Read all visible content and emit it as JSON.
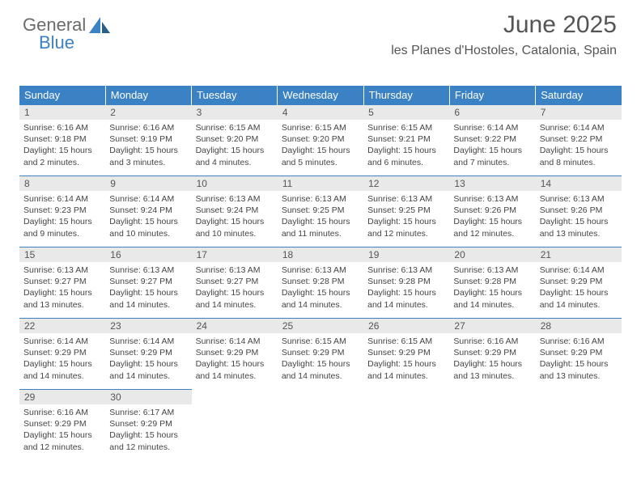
{
  "logo": {
    "word1": "General",
    "word2": "Blue"
  },
  "title": "June 2025",
  "location": "les Planes d'Hostoles, Catalonia, Spain",
  "colors": {
    "header_bg": "#3b82c4",
    "header_text": "#ffffff",
    "daynum_bg": "#e9e9e9",
    "border": "#3b82c4",
    "body_text": "#444444",
    "page_bg": "#ffffff"
  },
  "weekdays": [
    "Sunday",
    "Monday",
    "Tuesday",
    "Wednesday",
    "Thursday",
    "Friday",
    "Saturday"
  ],
  "days": [
    {
      "n": "1",
      "sr": "6:16 AM",
      "ss": "9:18 PM",
      "dl": "15 hours and 2 minutes."
    },
    {
      "n": "2",
      "sr": "6:16 AM",
      "ss": "9:19 PM",
      "dl": "15 hours and 3 minutes."
    },
    {
      "n": "3",
      "sr": "6:15 AM",
      "ss": "9:20 PM",
      "dl": "15 hours and 4 minutes."
    },
    {
      "n": "4",
      "sr": "6:15 AM",
      "ss": "9:20 PM",
      "dl": "15 hours and 5 minutes."
    },
    {
      "n": "5",
      "sr": "6:15 AM",
      "ss": "9:21 PM",
      "dl": "15 hours and 6 minutes."
    },
    {
      "n": "6",
      "sr": "6:14 AM",
      "ss": "9:22 PM",
      "dl": "15 hours and 7 minutes."
    },
    {
      "n": "7",
      "sr": "6:14 AM",
      "ss": "9:22 PM",
      "dl": "15 hours and 8 minutes."
    },
    {
      "n": "8",
      "sr": "6:14 AM",
      "ss": "9:23 PM",
      "dl": "15 hours and 9 minutes."
    },
    {
      "n": "9",
      "sr": "6:14 AM",
      "ss": "9:24 PM",
      "dl": "15 hours and 10 minutes."
    },
    {
      "n": "10",
      "sr": "6:13 AM",
      "ss": "9:24 PM",
      "dl": "15 hours and 10 minutes."
    },
    {
      "n": "11",
      "sr": "6:13 AM",
      "ss": "9:25 PM",
      "dl": "15 hours and 11 minutes."
    },
    {
      "n": "12",
      "sr": "6:13 AM",
      "ss": "9:25 PM",
      "dl": "15 hours and 12 minutes."
    },
    {
      "n": "13",
      "sr": "6:13 AM",
      "ss": "9:26 PM",
      "dl": "15 hours and 12 minutes."
    },
    {
      "n": "14",
      "sr": "6:13 AM",
      "ss": "9:26 PM",
      "dl": "15 hours and 13 minutes."
    },
    {
      "n": "15",
      "sr": "6:13 AM",
      "ss": "9:27 PM",
      "dl": "15 hours and 13 minutes."
    },
    {
      "n": "16",
      "sr": "6:13 AM",
      "ss": "9:27 PM",
      "dl": "15 hours and 14 minutes."
    },
    {
      "n": "17",
      "sr": "6:13 AM",
      "ss": "9:27 PM",
      "dl": "15 hours and 14 minutes."
    },
    {
      "n": "18",
      "sr": "6:13 AM",
      "ss": "9:28 PM",
      "dl": "15 hours and 14 minutes."
    },
    {
      "n": "19",
      "sr": "6:13 AM",
      "ss": "9:28 PM",
      "dl": "15 hours and 14 minutes."
    },
    {
      "n": "20",
      "sr": "6:13 AM",
      "ss": "9:28 PM",
      "dl": "15 hours and 14 minutes."
    },
    {
      "n": "21",
      "sr": "6:14 AM",
      "ss": "9:29 PM",
      "dl": "15 hours and 14 minutes."
    },
    {
      "n": "22",
      "sr": "6:14 AM",
      "ss": "9:29 PM",
      "dl": "15 hours and 14 minutes."
    },
    {
      "n": "23",
      "sr": "6:14 AM",
      "ss": "9:29 PM",
      "dl": "15 hours and 14 minutes."
    },
    {
      "n": "24",
      "sr": "6:14 AM",
      "ss": "9:29 PM",
      "dl": "15 hours and 14 minutes."
    },
    {
      "n": "25",
      "sr": "6:15 AM",
      "ss": "9:29 PM",
      "dl": "15 hours and 14 minutes."
    },
    {
      "n": "26",
      "sr": "6:15 AM",
      "ss": "9:29 PM",
      "dl": "15 hours and 14 minutes."
    },
    {
      "n": "27",
      "sr": "6:16 AM",
      "ss": "9:29 PM",
      "dl": "15 hours and 13 minutes."
    },
    {
      "n": "28",
      "sr": "6:16 AM",
      "ss": "9:29 PM",
      "dl": "15 hours and 13 minutes."
    },
    {
      "n": "29",
      "sr": "6:16 AM",
      "ss": "9:29 PM",
      "dl": "15 hours and 12 minutes."
    },
    {
      "n": "30",
      "sr": "6:17 AM",
      "ss": "9:29 PM",
      "dl": "15 hours and 12 minutes."
    }
  ],
  "labels": {
    "sunrise": "Sunrise:",
    "sunset": "Sunset:",
    "daylight": "Daylight:"
  }
}
